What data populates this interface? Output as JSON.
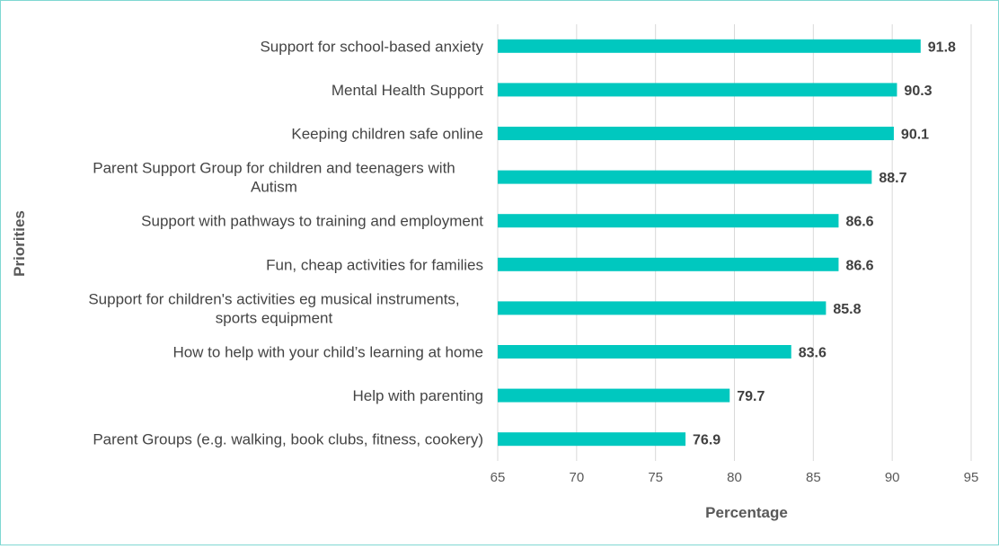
{
  "chart_data": {
    "type": "bar",
    "orientation": "horizontal",
    "categories": [
      [
        "Support for school-based anxiety"
      ],
      [
        "Mental Health Support"
      ],
      [
        "Keeping children safe online"
      ],
      [
        "Parent Support Group for children and teenagers with",
        "Autism"
      ],
      [
        "Support with pathways to training and employment"
      ],
      [
        "Fun, cheap activities for families"
      ],
      [
        "Support for children's activities eg musical instruments,",
        "sports equipment"
      ],
      [
        "How to help with your child’s learning at home"
      ],
      [
        "Help with parenting"
      ],
      [
        "Parent Groups (e.g. walking, book clubs, fitness, cookery)"
      ]
    ],
    "values": [
      91.8,
      90.3,
      90.1,
      88.7,
      86.6,
      86.6,
      85.8,
      83.6,
      79.7,
      76.9
    ],
    "value_labels": [
      "91.8",
      "90.3",
      "90.1",
      "88.7",
      "86.6",
      "86.6",
      "85.8",
      "83.6",
      "79.7",
      "76.9"
    ],
    "xlim": [
      65,
      95
    ],
    "xticks": [
      65,
      70,
      75,
      80,
      85,
      90,
      95
    ],
    "xtick_labels": [
      "65",
      "70",
      "75",
      "80",
      "85",
      "90",
      "95"
    ],
    "xlabel": "Percentage",
    "ylabel": "Priorities",
    "bar_color": "#00c8bf",
    "grid": true,
    "legend": "none"
  }
}
